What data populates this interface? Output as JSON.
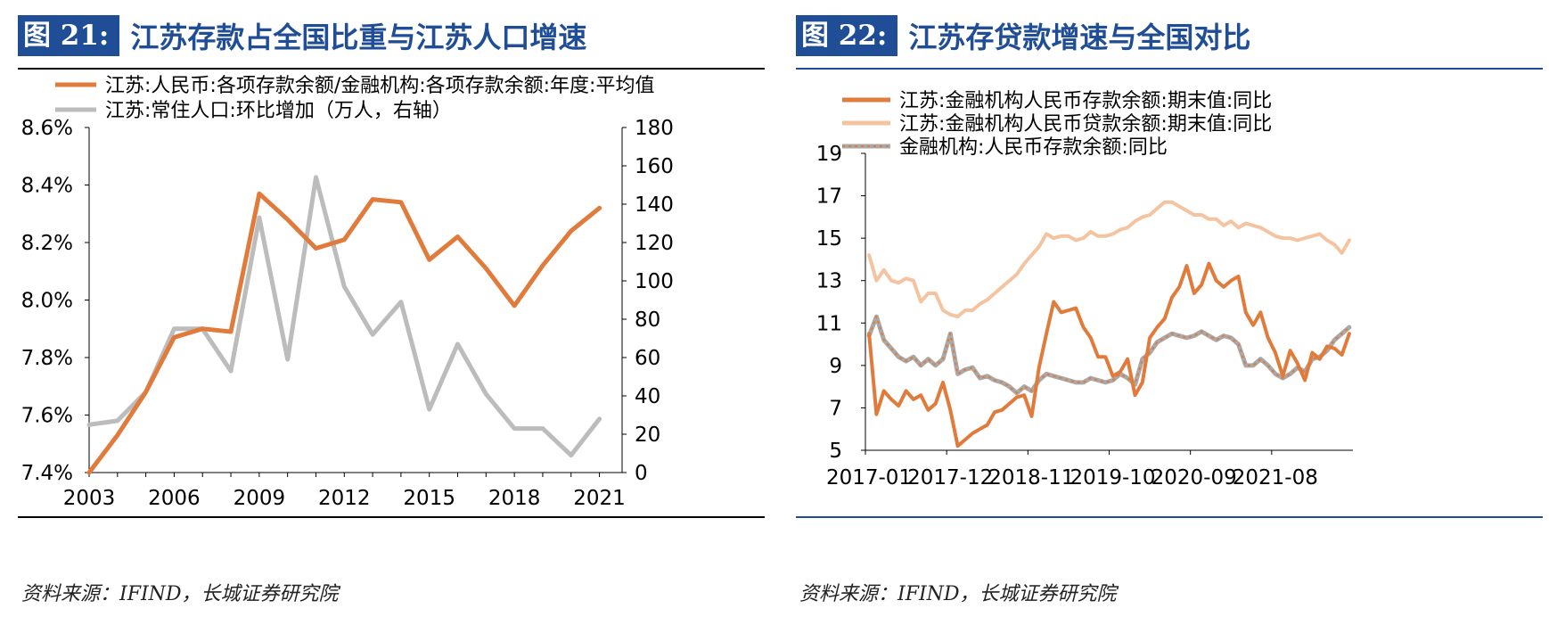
{
  "chart_data": [
    {
      "type": "line",
      "figure_label": "图 21:",
      "title": "江苏存款占全国比重与江苏人口增速",
      "source": "资料来源：IFIND，长城证券研究院",
      "x": [
        2003,
        2004,
        2005,
        2006,
        2007,
        2008,
        2009,
        2010,
        2011,
        2012,
        2013,
        2014,
        2015,
        2016,
        2017,
        2018,
        2019,
        2020,
        2021
      ],
      "x_ticks": [
        "2003",
        "2006",
        "2009",
        "2012",
        "2015",
        "2018",
        "2021"
      ],
      "xlim": [
        2003,
        2021.8
      ],
      "y_left_ticks": [
        "7.4%",
        "7.6%",
        "7.8%",
        "8.0%",
        "8.2%",
        "8.4%",
        "8.6%"
      ],
      "y_left_lim": [
        7.4,
        8.6
      ],
      "y_right_ticks": [
        "0",
        "20",
        "40",
        "60",
        "80",
        "100",
        "120",
        "140",
        "160",
        "180"
      ],
      "y_right_lim": [
        0,
        180
      ],
      "series": [
        {
          "name": "江苏:人民币:各项存款余额/金融机构:各项存款余额:年度:平均值",
          "axis": "left",
          "color": "#e07b3c",
          "values": [
            7.4,
            7.53,
            7.68,
            7.87,
            7.9,
            7.89,
            8.37,
            8.28,
            8.18,
            8.21,
            8.35,
            8.34,
            8.14,
            8.22,
            8.11,
            7.98,
            8.12,
            8.24,
            8.32
          ]
        },
        {
          "name": "江苏:常住人口:环比增加（万人，右轴）",
          "axis": "right",
          "color": "#bcbcbc",
          "values": [
            25,
            27,
            42,
            75,
            75,
            53,
            133,
            59,
            154,
            97,
            72,
            89,
            33,
            67,
            41,
            23,
            23,
            9,
            28
          ]
        }
      ]
    },
    {
      "type": "line",
      "figure_label": "图 22:",
      "title": "江苏存贷款增速与全国对比",
      "source": "资料来源：IFIND，长城证券研究院",
      "x_ticks": [
        "2017-01",
        "2017-12",
        "2018-11",
        "2019-10",
        "2020-09",
        "2021-08"
      ],
      "x_tick_month_index": [
        0,
        11,
        22,
        33,
        44,
        55
      ],
      "n_months": 66,
      "y_ticks": [
        "5",
        "7",
        "9",
        "11",
        "13",
        "15",
        "17",
        "19"
      ],
      "ylim": [
        5,
        19
      ],
      "series": [
        {
          "name": "江苏:金融机构人民币存款余额:期末值:同比",
          "color": "#e07b3c",
          "values": [
            10.5,
            6.7,
            7.8,
            7.4,
            7.1,
            7.8,
            7.4,
            7.6,
            6.9,
            7.2,
            8.2,
            6.9,
            5.2,
            5.5,
            5.8,
            6.0,
            6.2,
            6.8,
            6.9,
            7.2,
            7.5,
            7.6,
            6.6,
            8.9,
            10.5,
            12.0,
            11.5,
            11.6,
            11.7,
            10.8,
            10.3,
            9.4,
            9.4,
            8.5,
            8.7,
            9.3,
            7.6,
            8.2,
            10.3,
            10.8,
            11.2,
            12.2,
            12.7,
            13.7,
            12.4,
            12.8,
            13.8,
            13.0,
            12.7,
            13.0,
            13.2,
            11.5,
            10.9,
            11.5,
            10.3,
            9.6,
            8.5,
            9.7,
            9.1,
            8.3,
            9.6,
            9.3,
            9.9,
            9.8,
            9.5,
            10.5
          ]
        },
        {
          "name": "江苏:金融机构人民币贷款余额:期末值:同比",
          "color": "#f4c4a1",
          "values": [
            14.2,
            13.0,
            13.5,
            13.0,
            12.9,
            13.1,
            13.0,
            12.0,
            12.4,
            12.4,
            11.6,
            11.4,
            11.3,
            11.6,
            11.6,
            11.9,
            12.1,
            12.4,
            12.7,
            13.0,
            13.3,
            13.8,
            14.2,
            14.6,
            15.2,
            15.0,
            15.1,
            15.1,
            14.9,
            15.0,
            15.3,
            15.1,
            15.1,
            15.2,
            15.4,
            15.5,
            15.8,
            16.0,
            16.1,
            16.4,
            16.7,
            16.7,
            16.5,
            16.3,
            16.1,
            16.1,
            15.9,
            15.9,
            15.6,
            15.8,
            15.5,
            15.7,
            15.6,
            15.5,
            15.3,
            15.1,
            15.0,
            15.0,
            14.9,
            15.0,
            15.1,
            15.2,
            14.9,
            14.7,
            14.3,
            14.9
          ]
        },
        {
          "name": "金融机构:人民币存款余额:同比",
          "color": "#a9a9a9",
          "dash_color": "#e07b3c",
          "values": [
            10.4,
            11.3,
            10.2,
            9.8,
            9.4,
            9.2,
            9.4,
            9.0,
            9.3,
            9.0,
            9.3,
            10.5,
            8.6,
            8.8,
            8.9,
            8.4,
            8.5,
            8.3,
            8.2,
            8.0,
            7.7,
            8.0,
            7.8,
            8.3,
            8.6,
            8.5,
            8.4,
            8.3,
            8.2,
            8.2,
            8.4,
            8.3,
            8.2,
            8.3,
            8.6,
            8.4,
            8.1,
            9.3,
            9.6,
            10.1,
            10.3,
            10.5,
            10.4,
            10.3,
            10.4,
            10.6,
            10.4,
            10.2,
            10.4,
            10.3,
            10.0,
            9.0,
            9.0,
            9.3,
            9.0,
            8.6,
            8.4,
            8.6,
            8.9,
            8.7,
            9.3,
            9.4,
            9.7,
            10.2,
            10.5,
            10.8
          ]
        }
      ]
    }
  ]
}
